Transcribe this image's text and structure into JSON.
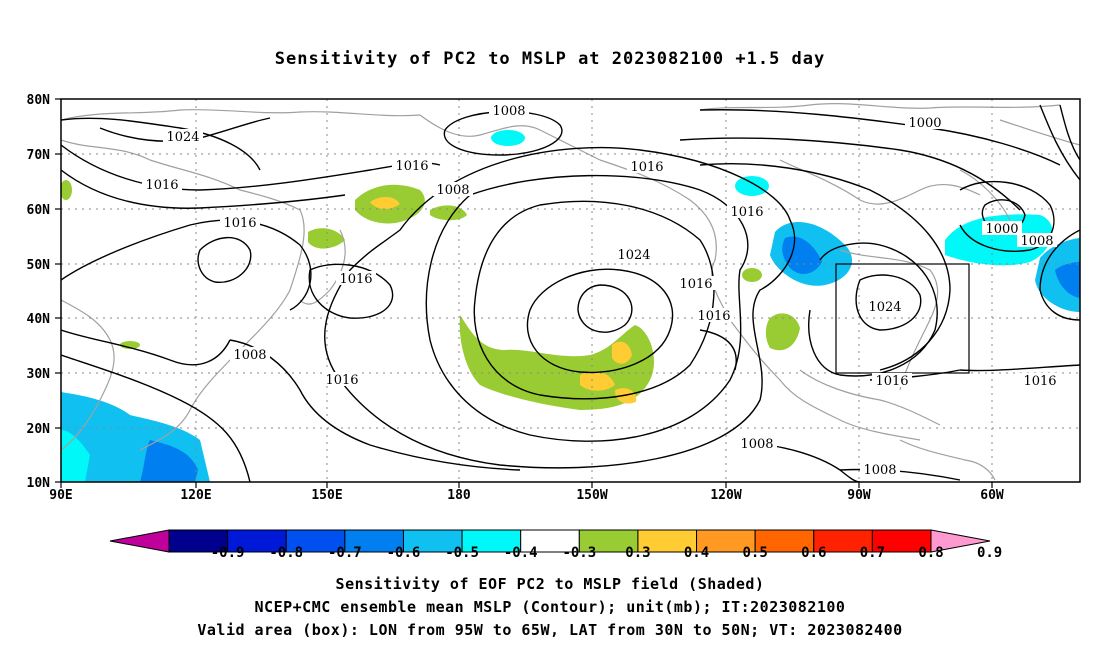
{
  "title": "Sensitivity of PC2 to MSLP at 2023082100 +1.5 day",
  "lat_labels": [
    "80N",
    "70N",
    "60N",
    "50N",
    "40N",
    "30N",
    "20N",
    "10N"
  ],
  "lon_labels": [
    "90E",
    "120E",
    "150E",
    "180",
    "150W",
    "120W",
    "90W",
    "60W"
  ],
  "colorbar": {
    "labels": [
      "-0.9",
      "-0.8",
      "-0.7",
      "-0.6",
      "-0.5",
      "-0.4",
      "-0.3",
      "0.3",
      "0.4",
      "0.5",
      "0.6",
      "0.7",
      "0.8",
      "0.9"
    ],
    "colors": [
      "#c0009a",
      "#00008c",
      "#0018d8",
      "#0050f0",
      "#0080f0",
      "#10c0f0",
      "#00f8f8",
      "#ffffff",
      "#99cc33",
      "#ffcc33",
      "#ff9922",
      "#ff6600",
      "#ff2200",
      "#ff0000",
      "#ff9ad0"
    ]
  },
  "contour_labels": [
    "1008",
    "1024",
    "1016",
    "1016",
    "1008",
    "1016",
    "1016",
    "1008",
    "1016",
    "1016",
    "1024",
    "1016",
    "1016",
    "1016",
    "1000",
    "1000",
    "1008",
    "1024",
    "1016",
    "1016",
    "1008",
    "1008"
  ],
  "valid_box": {
    "lon_west": -95,
    "lon_east": -65,
    "lat_south": 30,
    "lat_north": 50
  },
  "caption": {
    "line1": "Sensitivity of EOF PC2 to MSLP field (Shaded)",
    "line2": "NCEP+CMC ensemble mean MSLP (Contour); unit(mb); IT:2023082100",
    "line3": "Valid area (box): LON from 95W to 65W, LAT from 30N to 50N; VT: 2023082400"
  }
}
